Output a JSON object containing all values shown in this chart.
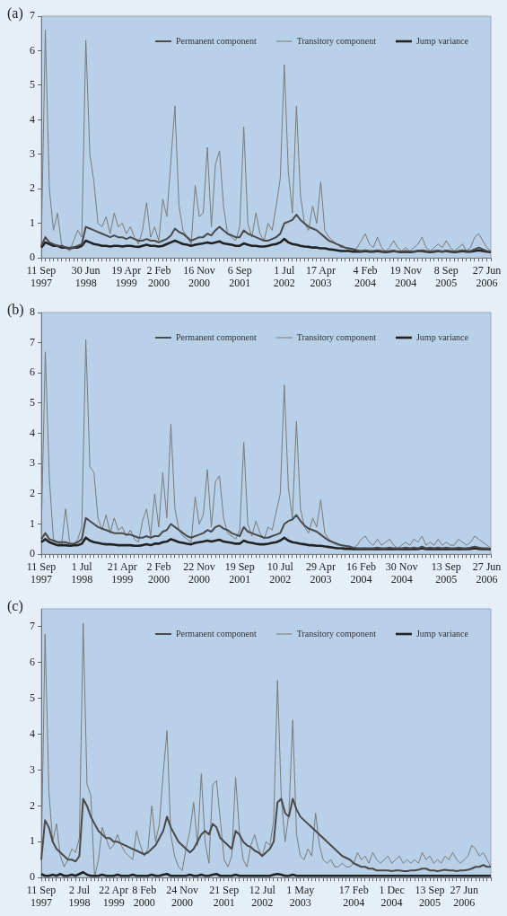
{
  "chart_data": [
    {
      "type": "line",
      "title": "(a)",
      "legend": "top right",
      "ylim": [
        0,
        7
      ],
      "yticks": [
        0,
        1,
        2,
        3,
        4,
        5,
        6,
        7
      ],
      "categories": [
        "11 Sep 1997",
        null,
        null,
        null,
        null,
        null,
        null,
        null,
        null,
        null,
        null,
        "30 Jun 1998",
        null,
        null,
        null,
        null,
        null,
        null,
        null,
        null,
        null,
        "19 Apr 1999",
        null,
        null,
        null,
        null,
        null,
        null,
        null,
        "2 Feb 2000",
        null,
        null,
        null,
        null,
        null,
        null,
        null,
        null,
        null,
        "16 Nov 2000",
        null,
        null,
        null,
        null,
        null,
        null,
        null,
        null,
        null,
        "6 Sep 2001",
        null,
        null,
        null,
        null,
        null,
        null,
        null,
        null,
        null,
        null,
        "1 Jul 2002",
        null,
        null,
        null,
        null,
        null,
        null,
        null,
        null,
        "17 Apr 2003",
        null,
        null,
        null,
        null,
        null,
        null,
        null,
        null,
        null,
        null,
        "4 Feb 2004",
        null,
        null,
        null,
        null,
        null,
        null,
        null,
        null,
        null,
        "19 Nov 2004",
        null,
        null,
        null,
        null,
        null,
        null,
        null,
        null,
        null,
        "8 Sep 2005",
        null,
        null,
        null,
        null,
        null,
        null,
        null,
        null,
        null,
        "27 Jun 2006",
        null
      ],
      "series": [
        {
          "name": "Permanent component",
          "color": "#4a4a4a",
          "values": [
            0.35,
            0.6,
            0.45,
            0.4,
            0.35,
            0.35,
            0.3,
            0.3,
            0.3,
            0.35,
            0.4,
            0.9,
            0.85,
            0.8,
            0.75,
            0.7,
            0.65,
            0.6,
            0.65,
            0.6,
            0.6,
            0.55,
            0.6,
            0.55,
            0.5,
            0.5,
            0.55,
            0.5,
            0.5,
            0.45,
            0.5,
            0.55,
            0.65,
            0.85,
            0.75,
            0.7,
            0.6,
            0.5,
            0.55,
            0.6,
            0.6,
            0.7,
            0.65,
            0.8,
            0.9,
            0.8,
            0.7,
            0.65,
            0.6,
            0.6,
            0.8,
            0.7,
            0.65,
            0.6,
            0.55,
            0.5,
            0.5,
            0.55,
            0.6,
            0.7,
            1.0,
            1.05,
            1.1,
            1.25,
            1.1,
            1.0,
            0.9,
            0.85,
            0.8,
            0.7,
            0.6,
            0.5,
            0.45,
            0.4,
            0.35,
            0.3,
            0.28,
            0.25,
            0.22,
            0.2,
            0.22,
            0.2,
            0.2,
            0.22,
            0.2,
            0.18,
            0.2,
            0.2,
            0.18,
            0.18,
            0.2,
            0.18,
            0.18,
            0.2,
            0.22,
            0.2,
            0.18,
            0.2,
            0.2,
            0.18,
            0.2,
            0.2,
            0.18,
            0.2,
            0.22,
            0.2,
            0.2,
            0.25,
            0.3,
            0.25,
            0.2,
            0.18
          ]
        },
        {
          "name": "Transitory component",
          "color": "#7a7a7a",
          "values": [
            0.3,
            6.6,
            2.0,
            0.8,
            1.3,
            0.4,
            0.3,
            0.2,
            0.5,
            0.8,
            0.6,
            6.3,
            3.0,
            2.2,
            1.0,
            0.9,
            1.2,
            0.7,
            1.3,
            0.9,
            1.0,
            0.7,
            0.9,
            0.6,
            0.4,
            0.8,
            1.6,
            0.6,
            0.9,
            0.5,
            1.7,
            1.2,
            2.8,
            4.4,
            1.5,
            0.8,
            0.6,
            0.4,
            2.1,
            1.2,
            1.3,
            3.2,
            0.9,
            2.7,
            3.1,
            1.5,
            0.7,
            0.6,
            0.5,
            0.9,
            3.8,
            1.0,
            0.6,
            1.3,
            0.7,
            0.5,
            1.0,
            0.8,
            1.5,
            2.3,
            5.6,
            2.5,
            1.3,
            4.4,
            1.8,
            1.0,
            0.8,
            1.5,
            1.0,
            2.2,
            0.8,
            0.6,
            0.5,
            0.4,
            0.3,
            0.3,
            0.2,
            0.2,
            0.3,
            0.5,
            0.7,
            0.4,
            0.3,
            0.6,
            0.3,
            0.2,
            0.3,
            0.5,
            0.3,
            0.2,
            0.3,
            0.2,
            0.3,
            0.4,
            0.6,
            0.3,
            0.2,
            0.3,
            0.4,
            0.3,
            0.5,
            0.3,
            0.2,
            0.3,
            0.4,
            0.2,
            0.3,
            0.6,
            0.7,
            0.5,
            0.3,
            0.2
          ]
        },
        {
          "name": "Jump variance",
          "color": "#222222",
          "values": [
            0.3,
            0.45,
            0.4,
            0.35,
            0.35,
            0.3,
            0.3,
            0.28,
            0.3,
            0.3,
            0.35,
            0.5,
            0.45,
            0.4,
            0.38,
            0.35,
            0.35,
            0.33,
            0.35,
            0.35,
            0.33,
            0.35,
            0.35,
            0.33,
            0.32,
            0.35,
            0.38,
            0.35,
            0.35,
            0.33,
            0.35,
            0.4,
            0.45,
            0.5,
            0.45,
            0.4,
            0.38,
            0.35,
            0.38,
            0.4,
            0.42,
            0.45,
            0.42,
            0.45,
            0.48,
            0.42,
            0.4,
            0.38,
            0.35,
            0.35,
            0.42,
            0.38,
            0.35,
            0.35,
            0.33,
            0.33,
            0.35,
            0.38,
            0.4,
            0.45,
            0.55,
            0.45,
            0.4,
            0.38,
            0.35,
            0.33,
            0.32,
            0.3,
            0.3,
            0.28,
            0.28,
            0.25,
            0.24,
            0.22,
            0.2,
            0.2,
            0.2,
            0.18,
            0.18,
            0.18,
            0.2,
            0.18,
            0.18,
            0.2,
            0.18,
            0.17,
            0.18,
            0.2,
            0.18,
            0.17,
            0.18,
            0.17,
            0.18,
            0.2,
            0.2,
            0.18,
            0.17,
            0.18,
            0.2,
            0.18,
            0.2,
            0.18,
            0.17,
            0.18,
            0.2,
            0.18,
            0.18,
            0.2,
            0.22,
            0.2,
            0.18,
            0.17
          ]
        }
      ]
    },
    {
      "type": "line",
      "title": "(b)",
      "legend": "top right",
      "ylim": [
        0,
        8
      ],
      "yticks": [
        0,
        1,
        2,
        3,
        4,
        5,
        6,
        7,
        8
      ],
      "categories": [
        "11 Sep 1997",
        null,
        null,
        null,
        null,
        null,
        null,
        null,
        null,
        null,
        "1 Jul 1998",
        null,
        null,
        null,
        null,
        null,
        null,
        null,
        null,
        null,
        "21 Apr 1999",
        null,
        null,
        null,
        null,
        null,
        null,
        null,
        null,
        "2 Feb 2000",
        null,
        null,
        null,
        null,
        null,
        null,
        null,
        null,
        null,
        "22 Nov 2000",
        null,
        null,
        null,
        null,
        null,
        null,
        null,
        null,
        null,
        "19 Sep 2001",
        null,
        null,
        null,
        null,
        null,
        null,
        null,
        null,
        null,
        "10 Jul 2002",
        null,
        null,
        null,
        null,
        null,
        null,
        null,
        null,
        null,
        "29 Apr 2003",
        null,
        null,
        null,
        null,
        null,
        null,
        null,
        null,
        null,
        "16 Feb 2004",
        null,
        null,
        null,
        null,
        null,
        null,
        null,
        null,
        null,
        "30 Nov 2004",
        null,
        null,
        null,
        null,
        null,
        null,
        null,
        null,
        null,
        null,
        "13 Sep 2005",
        null,
        null,
        null,
        null,
        null,
        null,
        null,
        null,
        null,
        "27 Jun 2006",
        null
      ],
      "series": [
        {
          "name": "Permanent component",
          "color": "#4a4a4a",
          "values": [
            0.5,
            0.7,
            0.5,
            0.45,
            0.4,
            0.4,
            0.4,
            0.35,
            0.35,
            0.4,
            0.5,
            1.2,
            1.1,
            1.0,
            0.9,
            0.85,
            0.8,
            0.75,
            0.7,
            0.7,
            0.7,
            0.65,
            0.65,
            0.6,
            0.55,
            0.55,
            0.6,
            0.55,
            0.6,
            0.6,
            0.75,
            0.8,
            1.0,
            0.9,
            0.8,
            0.7,
            0.6,
            0.55,
            0.6,
            0.65,
            0.7,
            0.8,
            0.75,
            0.9,
            0.95,
            0.85,
            0.8,
            0.7,
            0.65,
            0.6,
            0.9,
            0.75,
            0.7,
            0.65,
            0.6,
            0.55,
            0.55,
            0.6,
            0.65,
            0.7,
            1.0,
            1.1,
            1.15,
            1.3,
            1.1,
            0.95,
            0.85,
            0.8,
            0.75,
            0.65,
            0.55,
            0.45,
            0.4,
            0.35,
            0.3,
            0.28,
            0.25,
            0.22,
            0.2,
            0.2,
            0.2,
            0.2,
            0.2,
            0.22,
            0.2,
            0.2,
            0.22,
            0.2,
            0.2,
            0.2,
            0.22,
            0.2,
            0.22,
            0.2,
            0.25,
            0.2,
            0.22,
            0.2,
            0.22,
            0.2,
            0.22,
            0.2,
            0.2,
            0.22,
            0.2,
            0.2,
            0.22,
            0.25,
            0.22,
            0.2,
            0.2,
            0.18
          ]
        },
        {
          "name": "Transitory component",
          "color": "#7a7a7a",
          "values": [
            0.7,
            6.7,
            2.5,
            0.5,
            0.4,
            0.3,
            1.5,
            0.4,
            0.3,
            0.5,
            0.9,
            7.1,
            2.9,
            2.7,
            1.2,
            0.8,
            1.3,
            0.7,
            1.2,
            0.8,
            0.9,
            0.6,
            0.8,
            0.5,
            0.4,
            1.1,
            1.5,
            0.6,
            2.0,
            0.9,
            2.7,
            1.2,
            4.3,
            1.5,
            0.8,
            0.6,
            0.5,
            0.4,
            1.9,
            1.0,
            1.3,
            2.8,
            0.9,
            2.4,
            2.6,
            1.2,
            0.7,
            0.6,
            0.5,
            0.8,
            3.7,
            1.0,
            0.6,
            1.1,
            0.7,
            0.5,
            0.9,
            0.8,
            1.4,
            2.0,
            5.6,
            2.2,
            1.2,
            4.4,
            1.5,
            0.9,
            0.7,
            1.2,
            0.9,
            1.8,
            0.7,
            0.5,
            0.4,
            0.3,
            0.3,
            0.2,
            0.3,
            0.2,
            0.3,
            0.5,
            0.6,
            0.4,
            0.3,
            0.5,
            0.3,
            0.4,
            0.5,
            0.3,
            0.2,
            0.3,
            0.4,
            0.3,
            0.5,
            0.4,
            0.6,
            0.3,
            0.4,
            0.3,
            0.5,
            0.3,
            0.4,
            0.3,
            0.3,
            0.5,
            0.4,
            0.3,
            0.4,
            0.6,
            0.5,
            0.4,
            0.3,
            0.2
          ]
        },
        {
          "name": "Jump variance",
          "color": "#222222",
          "values": [
            0.4,
            0.5,
            0.4,
            0.35,
            0.3,
            0.3,
            0.3,
            0.28,
            0.3,
            0.3,
            0.35,
            0.55,
            0.45,
            0.4,
            0.38,
            0.35,
            0.33,
            0.33,
            0.32,
            0.3,
            0.3,
            0.3,
            0.3,
            0.28,
            0.28,
            0.3,
            0.33,
            0.3,
            0.35,
            0.35,
            0.4,
            0.42,
            0.5,
            0.45,
            0.4,
            0.38,
            0.35,
            0.33,
            0.38,
            0.4,
            0.42,
            0.45,
            0.42,
            0.45,
            0.48,
            0.42,
            0.4,
            0.38,
            0.35,
            0.35,
            0.45,
            0.4,
            0.38,
            0.35,
            0.33,
            0.33,
            0.35,
            0.38,
            0.4,
            0.45,
            0.55,
            0.45,
            0.4,
            0.38,
            0.35,
            0.33,
            0.3,
            0.3,
            0.28,
            0.28,
            0.26,
            0.24,
            0.22,
            0.2,
            0.2,
            0.18,
            0.18,
            0.17,
            0.17,
            0.17,
            0.18,
            0.17,
            0.17,
            0.18,
            0.17,
            0.17,
            0.18,
            0.17,
            0.17,
            0.17,
            0.18,
            0.17,
            0.18,
            0.17,
            0.2,
            0.17,
            0.18,
            0.17,
            0.18,
            0.17,
            0.18,
            0.17,
            0.17,
            0.18,
            0.17,
            0.17,
            0.18,
            0.2,
            0.18,
            0.17,
            0.17,
            0.16
          ]
        }
      ]
    },
    {
      "type": "line",
      "title": "(c)",
      "legend": "top right",
      "ylim": [
        0,
        7.5
      ],
      "yticks": [
        0,
        1,
        2,
        3,
        4,
        5,
        6,
        7
      ],
      "categories": [
        "11 Sep 1997",
        null,
        null,
        null,
        null,
        null,
        null,
        null,
        null,
        null,
        "2 Jul 1998",
        null,
        null,
        null,
        null,
        null,
        null,
        null,
        null,
        "22 Apr 1999",
        null,
        null,
        null,
        null,
        null,
        null,
        null,
        "8 Feb 2000",
        null,
        null,
        null,
        null,
        null,
        null,
        null,
        null,
        null,
        "24 Nov 2000",
        null,
        null,
        null,
        null,
        null,
        null,
        null,
        null,
        null,
        null,
        "21 Sep 2001",
        null,
        null,
        null,
        null,
        null,
        null,
        null,
        null,
        null,
        "12 Jul 2002",
        null,
        null,
        null,
        null,
        null,
        null,
        null,
        null,
        null,
        "1 May 2003",
        null,
        null,
        null,
        null,
        null,
        null,
        null,
        null,
        null,
        null,
        null,
        null,
        null,
        "17 Feb 2004",
        null,
        null,
        null,
        null,
        null,
        null,
        null,
        null,
        null,
        "1 Dec 2004",
        null,
        null,
        null,
        null,
        null,
        null,
        null,
        null,
        null,
        "13 Sep 2005",
        null,
        null,
        null,
        null,
        null,
        null,
        null,
        null,
        "27 Jun 2006",
        null,
        null,
        null,
        null,
        null,
        null,
        null
      ],
      "series": [
        {
          "name": "Permanent component",
          "color": "#4a4a4a",
          "values": [
            0.5,
            1.6,
            1.4,
            1.0,
            0.8,
            0.7,
            0.6,
            0.5,
            0.5,
            0.45,
            0.6,
            2.2,
            2.0,
            1.7,
            1.5,
            1.3,
            1.2,
            1.1,
            1.1,
            1.0,
            1.0,
            0.95,
            0.9,
            0.85,
            0.8,
            0.75,
            0.7,
            0.65,
            0.7,
            0.8,
            0.9,
            1.1,
            1.3,
            1.7,
            1.4,
            1.2,
            1.0,
            0.9,
            0.8,
            0.7,
            0.8,
            1.0,
            1.2,
            1.3,
            1.2,
            1.5,
            1.4,
            1.1,
            1.0,
            0.9,
            0.8,
            1.3,
            1.2,
            1.0,
            0.9,
            0.85,
            0.75,
            0.7,
            0.6,
            0.7,
            0.8,
            1.0,
            2.1,
            2.2,
            1.8,
            1.7,
            2.2,
            1.9,
            1.7,
            1.6,
            1.5,
            1.4,
            1.3,
            1.2,
            1.1,
            1.0,
            0.9,
            0.8,
            0.7,
            0.6,
            0.55,
            0.5,
            0.4,
            0.35,
            0.3,
            0.3,
            0.25,
            0.25,
            0.2,
            0.2,
            0.2,
            0.2,
            0.18,
            0.2,
            0.2,
            0.18,
            0.18,
            0.2,
            0.2,
            0.22,
            0.25,
            0.25,
            0.2,
            0.2,
            0.18,
            0.2,
            0.22,
            0.2,
            0.2,
            0.18,
            0.2,
            0.2,
            0.22,
            0.25,
            0.3,
            0.3,
            0.35,
            0.3,
            0.3
          ]
        },
        {
          "name": "Transitory component",
          "color": "#7a7a7a",
          "values": [
            0.5,
            6.8,
            2.4,
            1.0,
            1.5,
            0.6,
            0.3,
            0.5,
            0.8,
            0.7,
            1.1,
            7.1,
            2.6,
            2.3,
            0.0,
            0.5,
            1.4,
            1.1,
            0.8,
            0.9,
            1.2,
            0.9,
            0.7,
            0.6,
            0.5,
            1.3,
            0.9,
            0.6,
            0.8,
            2.0,
            1.0,
            1.5,
            2.9,
            4.1,
            1.2,
            0.6,
            0.3,
            0.2,
            0.8,
            1.3,
            2.1,
            0.9,
            2.9,
            1.0,
            0.4,
            2.6,
            2.7,
            1.6,
            0.5,
            0.3,
            0.6,
            2.8,
            1.3,
            0.5,
            0.3,
            0.9,
            1.2,
            0.8,
            0.6,
            1.0,
            0.9,
            1.6,
            5.5,
            2.2,
            1.0,
            1.8,
            4.4,
            1.2,
            0.6,
            0.5,
            0.8,
            0.6,
            1.8,
            0.9,
            0.5,
            0.4,
            0.5,
            0.3,
            0.3,
            0.4,
            0.3,
            0.3,
            0.4,
            0.7,
            0.5,
            0.6,
            0.4,
            0.7,
            0.5,
            0.4,
            0.5,
            0.6,
            0.4,
            0.5,
            0.6,
            0.4,
            0.5,
            0.4,
            0.5,
            0.4,
            0.7,
            0.5,
            0.6,
            0.4,
            0.5,
            0.4,
            0.6,
            0.5,
            0.7,
            0.5,
            0.4,
            0.5,
            0.6,
            0.9,
            0.8,
            0.6,
            0.7,
            0.5,
            0.3
          ]
        },
        {
          "name": "Jump variance",
          "color": "#222222",
          "values": [
            0.1,
            0.05,
            0.05,
            0.08,
            0.05,
            0.1,
            0.05,
            0.05,
            0.08,
            0.05,
            0.1,
            0.15,
            0.08,
            0.05,
            0.05,
            0.05,
            0.08,
            0.05,
            0.05,
            0.05,
            0.08,
            0.05,
            0.05,
            0.05,
            0.08,
            0.05,
            0.05,
            0.05,
            0.05,
            0.08,
            0.05,
            0.05,
            0.08,
            0.1,
            0.05,
            0.05,
            0.05,
            0.05,
            0.05,
            0.08,
            0.05,
            0.05,
            0.08,
            0.05,
            0.05,
            0.08,
            0.1,
            0.05,
            0.05,
            0.05,
            0.05,
            0.08,
            0.05,
            0.05,
            0.05,
            0.05,
            0.05,
            0.05,
            0.05,
            0.05,
            0.05,
            0.08,
            0.1,
            0.08,
            0.05,
            0.05,
            0.08,
            0.05,
            0.05,
            0.05,
            0.05,
            0.05,
            0.05,
            0.05,
            0.05,
            0.05,
            0.05,
            0.05,
            0.05,
            0.05,
            0.05,
            0.05,
            0.05,
            0.05,
            0.05,
            0.05,
            0.05,
            0.05,
            0.05,
            0.05,
            0.05,
            0.05,
            0.05,
            0.05,
            0.05,
            0.05,
            0.05,
            0.05,
            0.05,
            0.05,
            0.05,
            0.05,
            0.05,
            0.05,
            0.05,
            0.05,
            0.05,
            0.05,
            0.05,
            0.05,
            0.05,
            0.05,
            0.05,
            0.05,
            0.05,
            0.05,
            0.05,
            0.05,
            0.05
          ]
        }
      ]
    }
  ]
}
